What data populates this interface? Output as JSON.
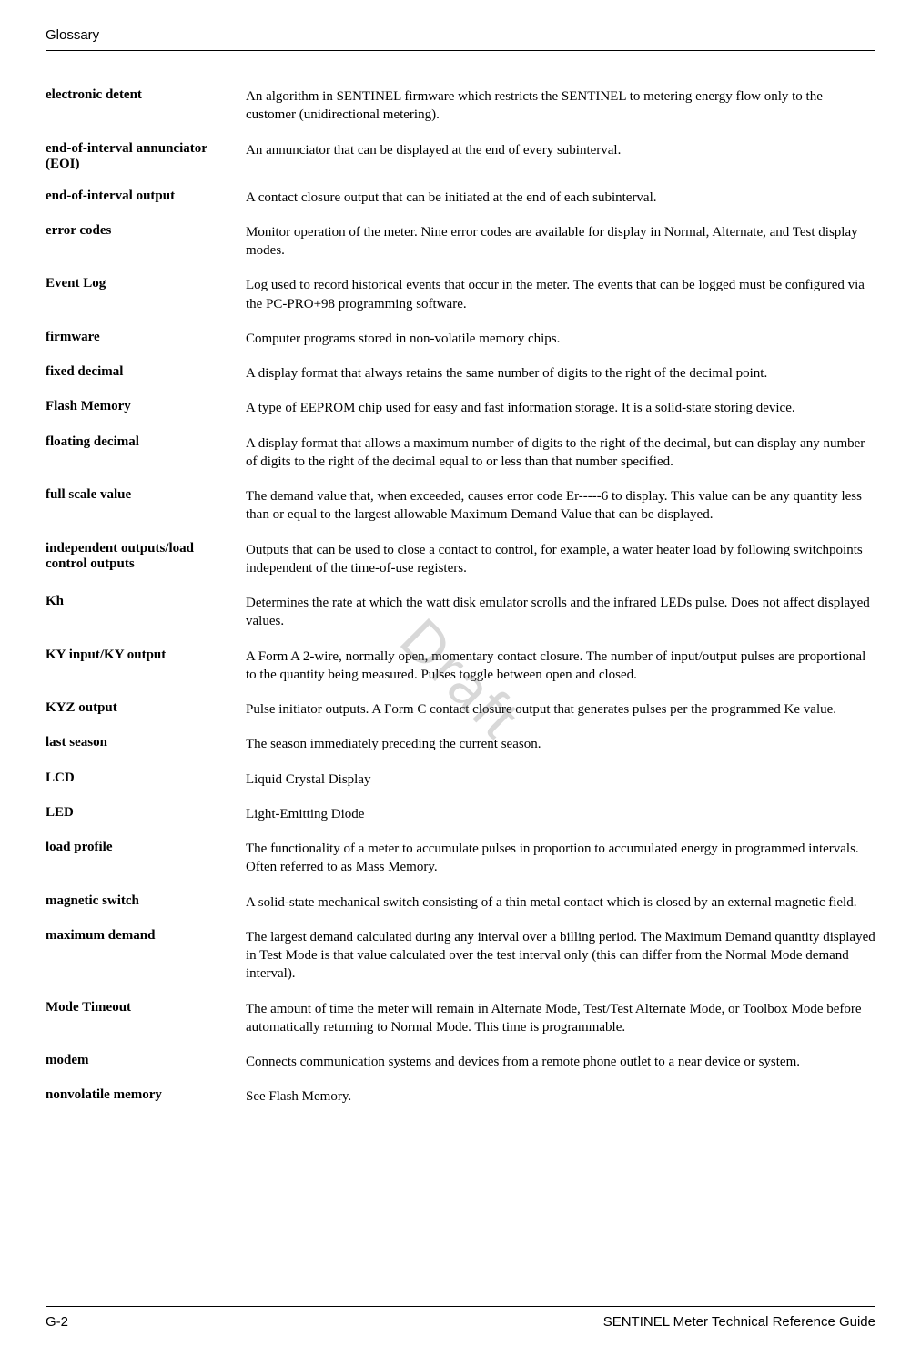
{
  "header": {
    "section": "Glossary"
  },
  "entries": [
    {
      "term": "electronic detent",
      "definition": "An algorithm in SENTINEL firmware which restricts the SENTINEL to metering energy flow only to the customer (unidirectional metering)."
    },
    {
      "term": "end-of-interval annunciator (EOI)",
      "definition": "An annunciator that can be displayed at the end of every subinterval."
    },
    {
      "term": "end-of-interval output",
      "definition": "A contact closure output that can be initiated at the end of each subinterval."
    },
    {
      "term": "error codes",
      "definition": "Monitor operation of the meter. Nine error codes are available for display in Normal, Alternate, and Test display modes."
    },
    {
      "term": "Event Log",
      "definition": "Log used to record historical events that occur in the meter. The events that can be logged must be configured via the PC-PRO+98 programming software."
    },
    {
      "term": "firmware",
      "definition": "Computer programs stored in non-volatile memory chips."
    },
    {
      "term": "fixed decimal",
      "definition": "A display format that always retains the same number of digits to the right of the decimal point."
    },
    {
      "term": "Flash Memory",
      "definition": "A type of EEPROM chip used for easy and fast information storage. It is a solid-state storing device."
    },
    {
      "term": "floating decimal",
      "definition": "A display format that allows a maximum number of digits to the right of the decimal, but can display any number of digits to the right of the decimal equal to or less than that number specified."
    },
    {
      "term": "full scale value",
      "definition": "The demand value that, when exceeded, causes error code Er-----6 to display. This value can be any quantity less than or equal to the largest allowable Maximum Demand Value that can be displayed."
    },
    {
      "term": "independent outputs/load control outputs",
      "definition": "Outputs that can be used to close a contact to control, for example, a water heater load by following switchpoints independent of the time-of-use registers."
    },
    {
      "term": "Kh",
      "definition": "Determines the rate at which the watt disk emulator scrolls and the infrared LEDs pulse. Does not affect displayed values."
    },
    {
      "term": "KY input/KY output",
      "definition": "A Form A 2-wire, normally open, momentary contact closure. The number of input/output pulses are proportional to the quantity being measured. Pulses toggle between open and closed."
    },
    {
      "term": "KYZ output",
      "definition": "Pulse initiator outputs. A Form C contact closure output that generates pulses per the programmed Ke value."
    },
    {
      "term": "last season",
      "definition": "The season immediately preceding the current season."
    },
    {
      "term": "LCD",
      "definition": "Liquid Crystal Display"
    },
    {
      "term": "LED",
      "definition": "Light-Emitting Diode"
    },
    {
      "term": "load profile",
      "definition": "The functionality of a meter to accumulate pulses in proportion to accumulated energy in programmed intervals. Often referred to as Mass Memory."
    },
    {
      "term": "magnetic switch",
      "definition": "A solid-state mechanical switch consisting of a thin metal contact which is closed by an external magnetic field."
    },
    {
      "term": "maximum demand",
      "definition": "The largest demand calculated during any interval over a billing period. The Maximum Demand quantity displayed in Test Mode is that value calculated over the test interval only (this can differ from the Normal Mode demand interval)."
    },
    {
      "term": "Mode Timeout",
      "definition": "The amount of time the meter will remain in Alternate Mode, Test/Test Alternate Mode, or Toolbox Mode before automatically returning to Normal Mode. This time is programmable."
    },
    {
      "term": "modem",
      "definition": "Connects communication systems and devices from a remote phone outlet to a near device or system."
    },
    {
      "term": "nonvolatile memory",
      "definition": "See Flash Memory."
    }
  ],
  "footer": {
    "page_number": "G-2",
    "doc_title": "SENTINEL Meter Technical Reference Guide"
  },
  "watermark": "Draft"
}
